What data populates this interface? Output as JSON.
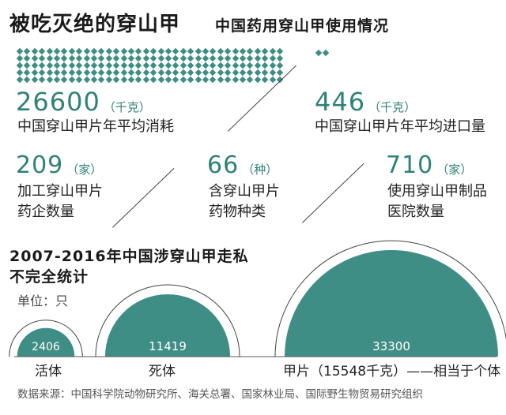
{
  "header": {
    "title": "被吃灭绝的穿山甲",
    "subtitle": "中国药用穿山甲使用情况"
  },
  "stats": {
    "consumption": {
      "value": "26600",
      "unit": "（千克）",
      "label": "中国穿山甲片年平均消耗"
    },
    "import": {
      "value": "446",
      "unit": "（千克）",
      "label": "中国穿山甲片年平均进口量"
    },
    "companies": {
      "value": "209",
      "unit": "（家）",
      "label_line1": "加工穿山甲片",
      "label_line2": "药企数量"
    },
    "drugs": {
      "value": "66",
      "unit": "（种）",
      "label_line1": "含穿山甲片",
      "label_line2": "药物种类"
    },
    "hospitals": {
      "value": "710",
      "unit": "（家）",
      "label_line1": "使用穿山甲制品",
      "label_line2": "医院数量"
    }
  },
  "smuggling": {
    "title_line1": "2007-2016年中国涉穿山甲走私",
    "title_line2": "不完全统计",
    "unit_line": "单位：只"
  },
  "chart_data": {
    "type": "bubble",
    "title": "2007-2016年中国涉穿山甲走私 不完全统计",
    "unit": "单位：只",
    "categories": [
      "活体",
      "死体",
      "甲片（15548千克）——相当于个体"
    ],
    "values": [
      2406,
      11419,
      33300
    ],
    "value_labels": [
      "2406",
      "11419",
      "33300"
    ]
  },
  "colors": {
    "accent": "#3f8e85",
    "accent_text": "#2f8278"
  },
  "source": "数据来源：中国科学院动物研究所、海关总署、国家林业局、国际野生物贸易研究组织"
}
